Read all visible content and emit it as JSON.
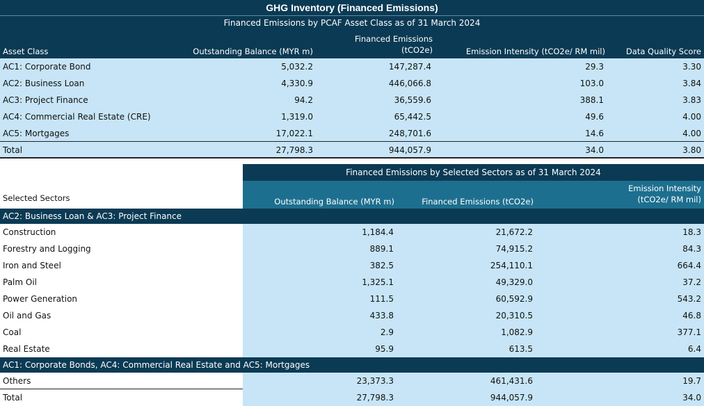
{
  "title": "GHG Inventory (Financed Emissions)",
  "table1": {
    "caption": "Financed Emissions by PCAF Asset Class as of 31 March 2024",
    "headers": {
      "asset_class": "Asset Class",
      "balance": "Outstanding Balance (MYR m)",
      "emissions_line1": "Financed Emissions",
      "emissions_line2": "(tCO2e)",
      "intensity": "Emission Intensity (tCO2e/ RM mil)",
      "dq": "Data Quality Score"
    },
    "rows": [
      {
        "name": "AC1: Corporate Bond",
        "balance": "5,032.2",
        "emissions": "147,287.4",
        "intensity": "29.3",
        "dq": "3.30"
      },
      {
        "name": "AC2: Business Loan",
        "balance": "4,330.9",
        "emissions": "446,066.8",
        "intensity": "103.0",
        "dq": "3.84"
      },
      {
        "name": "AC3: Project Finance",
        "balance": "94.2",
        "emissions": "36,559.6",
        "intensity": "388.1",
        "dq": "3.83"
      },
      {
        "name": "AC4: Commercial Real Estate (CRE)",
        "balance": "1,319.0",
        "emissions": "65,442.5",
        "intensity": "49.6",
        "dq": "4.00"
      },
      {
        "name": "AC5: Mortgages",
        "balance": "17,022.1",
        "emissions": "248,701.6",
        "intensity": "14.6",
        "dq": "4.00"
      }
    ],
    "total": {
      "name": "Total",
      "balance": "27,798.3",
      "emissions": "944,057.9",
      "intensity": "34.0",
      "dq": "3.80"
    }
  },
  "table2": {
    "caption": "Financed Emissions by Selected Sectors as of 31 March 2024",
    "headers": {
      "sectors": "Selected Sectors",
      "balance": "Outstanding Balance (MYR m)",
      "emissions": "Financed Emissions (tCO2e)",
      "intensity_line1": "Emission Intensity",
      "intensity_line2": "(tCO2e/ RM mil)"
    },
    "section1": "AC2: Business Loan & AC3: Project Finance",
    "rows": [
      {
        "name": "Construction",
        "balance": "1,184.4",
        "emissions": "21,672.2",
        "intensity": "18.3"
      },
      {
        "name": "Forestry and Logging",
        "balance": "889.1",
        "emissions": "74,915.2",
        "intensity": "84.3"
      },
      {
        "name": "Iron and Steel",
        "balance": "382.5",
        "emissions": "254,110.1",
        "intensity": "664.4"
      },
      {
        "name": "Palm Oil",
        "balance": "1,325.1",
        "emissions": "49,329.0",
        "intensity": "37.2"
      },
      {
        "name": "Power Generation",
        "balance": "111.5",
        "emissions": "60,592.9",
        "intensity": "543.2"
      },
      {
        "name": "Oil and Gas",
        "balance": "433.8",
        "emissions": "20,310.5",
        "intensity": "46.8"
      },
      {
        "name": "Coal",
        "balance": "2.9",
        "emissions": "1,082.9",
        "intensity": "377.1"
      },
      {
        "name": "Real Estate",
        "balance": "95.9",
        "emissions": "613.5",
        "intensity": "6.4"
      }
    ],
    "section2": "AC1: Corporate Bonds, AC4: Commercial Real Estate and AC5: Mortgages",
    "others": {
      "name": "Others",
      "balance": "23,373.3",
      "emissions": "461,431.6",
      "intensity": "19.7"
    },
    "total": {
      "name": "Total",
      "balance": "27,798.3",
      "emissions": "944,057.9",
      "intensity": "34.0"
    }
  }
}
